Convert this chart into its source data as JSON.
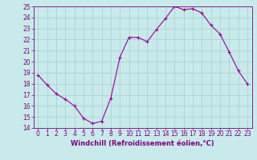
{
  "x": [
    0,
    1,
    2,
    3,
    4,
    5,
    6,
    7,
    8,
    9,
    10,
    11,
    12,
    13,
    14,
    15,
    16,
    17,
    18,
    19,
    20,
    21,
    22,
    23
  ],
  "y": [
    18.8,
    17.9,
    17.1,
    16.6,
    16.0,
    14.9,
    14.4,
    14.6,
    16.7,
    20.4,
    22.2,
    22.2,
    21.8,
    22.9,
    23.9,
    25.0,
    24.7,
    24.8,
    24.4,
    23.3,
    22.5,
    20.9,
    19.2,
    18.0
  ],
  "line_color": "#990099",
  "marker": "+",
  "bg_color": "#c8eaea",
  "grid_color": "#aad4d4",
  "xlabel": "Windchill (Refroidissement éolien,°C)",
  "ylim": [
    14,
    25
  ],
  "xlim_min": -0.5,
  "xlim_max": 23.5,
  "yticks": [
    14,
    15,
    16,
    17,
    18,
    19,
    20,
    21,
    22,
    23,
    24,
    25
  ],
  "xticks": [
    0,
    1,
    2,
    3,
    4,
    5,
    6,
    7,
    8,
    9,
    10,
    11,
    12,
    13,
    14,
    15,
    16,
    17,
    18,
    19,
    20,
    21,
    22,
    23
  ],
  "tick_color": "#800080",
  "label_color": "#800080",
  "label_fontsize": 6.0,
  "tick_fontsize": 5.5
}
